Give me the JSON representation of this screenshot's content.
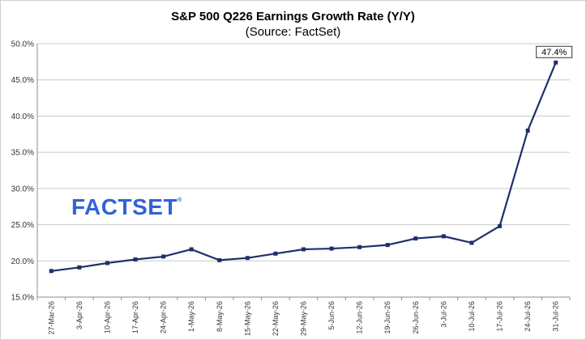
{
  "chart_data": {
    "type": "line",
    "title": "S&P 500 Q226 Earnings Growth Rate (Y/Y)",
    "subtitle": "(Source: FactSet)",
    "xlabel": "",
    "ylabel": "",
    "ylim": [
      15.0,
      50.0
    ],
    "yticks": [
      "15.0%",
      "20.0%",
      "25.0%",
      "30.0%",
      "35.0%",
      "40.0%",
      "45.0%",
      "50.0%"
    ],
    "grid": true,
    "categories": [
      "27-Mar-26",
      "3-Apr-26",
      "10-Apr-26",
      "17-Apr-26",
      "24-Apr-26",
      "1-May-26",
      "8-May-26",
      "15-May-26",
      "22-May-26",
      "29-May-26",
      "5-Jun-26",
      "12-Jun-26",
      "19-Jun-26",
      "26-Jun-26",
      "3-Jul-26",
      "10-Jul-26",
      "17-Jul-26",
      "24-Jul-26",
      "31-Jul-26"
    ],
    "series": [
      {
        "values": [
          18.6,
          19.1,
          19.7,
          20.2,
          20.6,
          21.6,
          20.1,
          20.4,
          21.0,
          21.6,
          21.7,
          21.9,
          22.2,
          23.1,
          23.4,
          22.5,
          24.8,
          38.0,
          47.4
        ],
        "color": "#1f2f6b"
      }
    ],
    "annotations": [
      {
        "label": "47.4%",
        "category": "31-Jul-26"
      }
    ]
  },
  "logo": {
    "text": "FACTSET",
    "mark": "®",
    "color": "#2f63d8"
  }
}
